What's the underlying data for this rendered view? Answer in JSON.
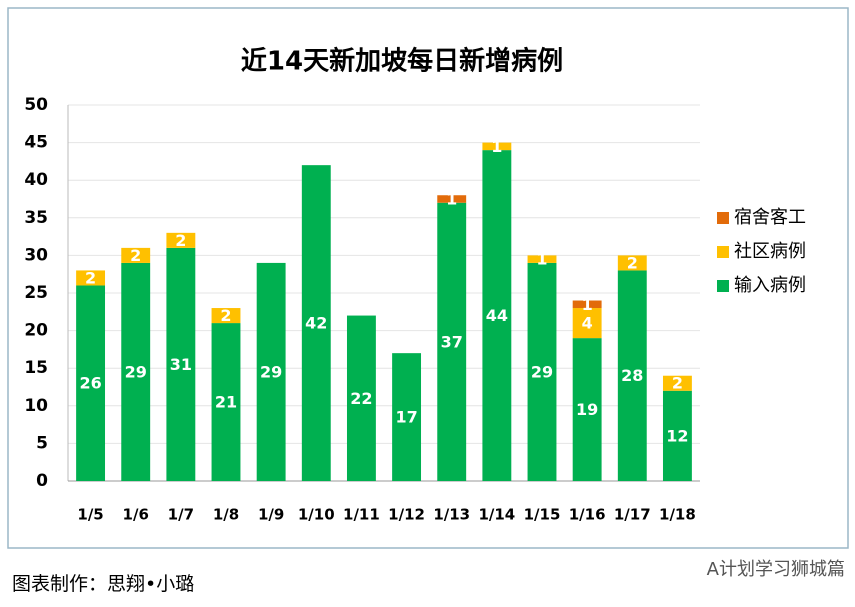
{
  "chart_data": {
    "type": "stacked-bar",
    "title": "近14天新加坡每日新增病例",
    "categories": [
      "1/5",
      "1/6",
      "1/7",
      "1/8",
      "1/9",
      "1/10",
      "1/11",
      "1/12",
      "1/13",
      "1/14",
      "1/15",
      "1/16",
      "1/17",
      "1/18"
    ],
    "series": [
      {
        "name": "输入病例",
        "color": "#00b050",
        "values": [
          26,
          29,
          31,
          21,
          29,
          42,
          22,
          17,
          37,
          44,
          29,
          19,
          28,
          12
        ]
      },
      {
        "name": "社区病例",
        "color": "#ffc000",
        "values": [
          2,
          2,
          2,
          2,
          null,
          null,
          null,
          null,
          null,
          1,
          1,
          4,
          2,
          2
        ]
      },
      {
        "name": "宿舍客工",
        "color": "#e26b0a",
        "values": [
          null,
          null,
          null,
          null,
          null,
          null,
          null,
          null,
          1,
          null,
          null,
          1,
          null,
          null
        ]
      }
    ],
    "ylim": [
      0,
      50
    ],
    "yticks": [
      0,
      5,
      10,
      15,
      20,
      25,
      30,
      35,
      40,
      45,
      50
    ],
    "grid": true,
    "legend": "right"
  },
  "caption": "图表制作：思翔•小璐",
  "watermark": "A计划学习狮城篇"
}
